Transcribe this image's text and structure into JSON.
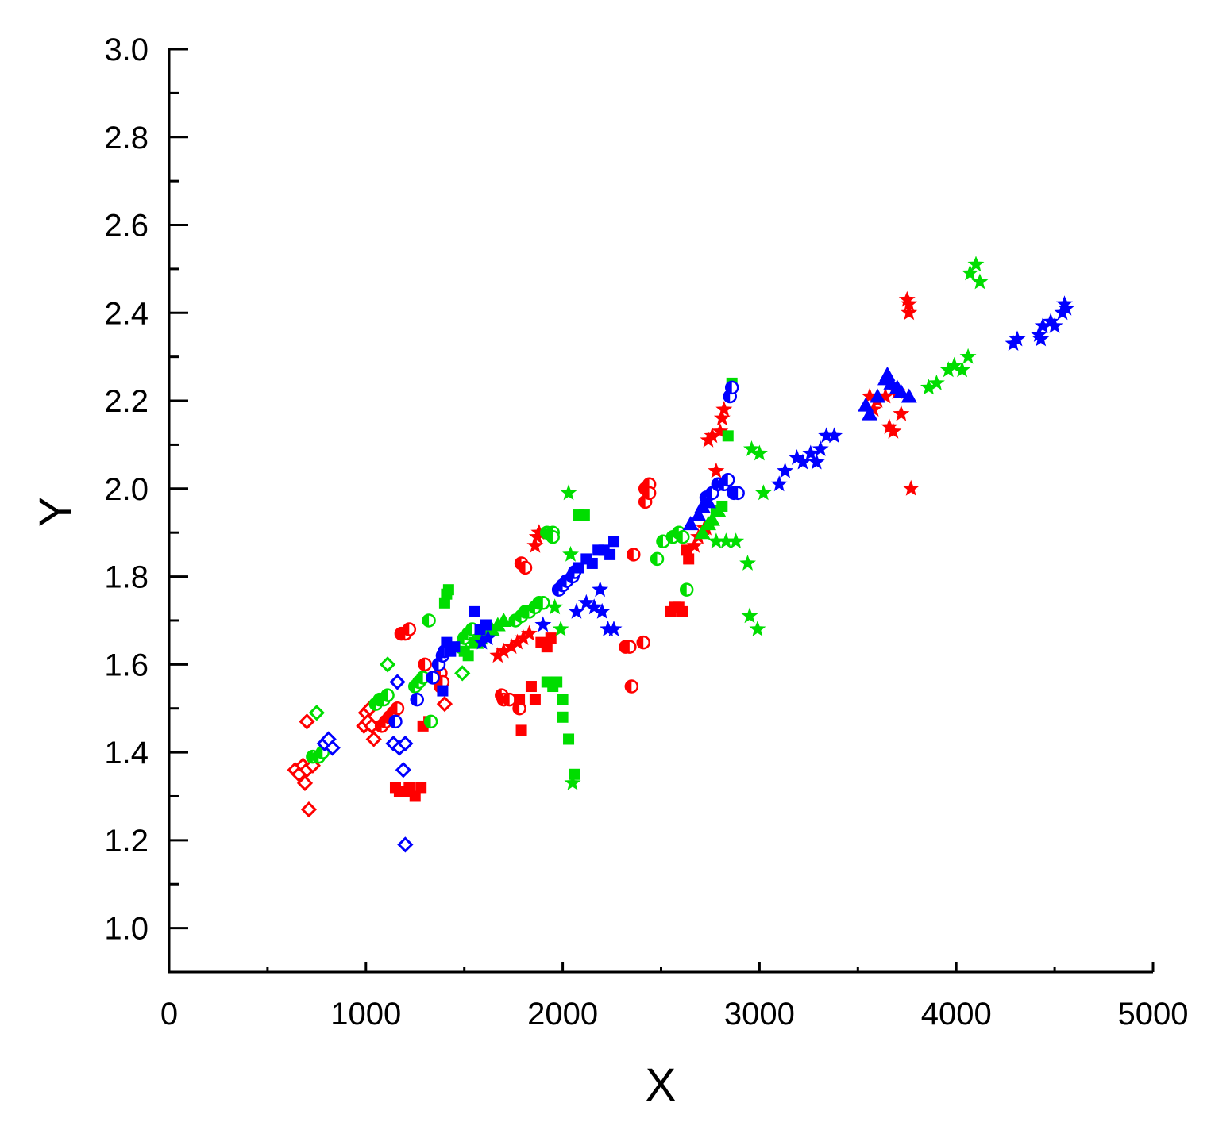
{
  "chart_data": {
    "type": "scatter",
    "title": "",
    "xlabel": "X",
    "ylabel": "Y",
    "xlim": [
      0,
      5000
    ],
    "ylim": [
      0.9,
      3.0
    ],
    "xticks": [
      0,
      1000,
      2000,
      3000,
      4000,
      5000
    ],
    "yticks": [
      1.0,
      1.2,
      1.4,
      1.6,
      1.8,
      2.0,
      2.2,
      2.4,
      2.6,
      2.8,
      3.0
    ],
    "x_tick_labels": [
      "0",
      "1000",
      "2000",
      "3000",
      "4000",
      "5000"
    ],
    "y_tick_labels": [
      "1.0",
      "1.2",
      "1.4",
      "1.6",
      "1.8",
      "2.0",
      "2.2",
      "2.4",
      "2.6",
      "2.8",
      "3.0"
    ],
    "grid": false,
    "legend": "none",
    "colors": {
      "red": "#ff0000",
      "green": "#00dd00",
      "blue": "#0000ff",
      "axis": "#000000"
    },
    "series": [
      {
        "color": "red",
        "marker": "diamond",
        "fill": "open",
        "points": [
          [
            640,
            1.36
          ],
          [
            660,
            1.35
          ],
          [
            680,
            1.37
          ],
          [
            690,
            1.33
          ],
          [
            700,
            1.36
          ],
          [
            700,
            1.47
          ],
          [
            710,
            1.27
          ],
          [
            730,
            1.37
          ],
          [
            990,
            1.46
          ],
          [
            1000,
            1.49
          ],
          [
            1010,
            1.47
          ],
          [
            1020,
            1.5
          ],
          [
            1030,
            1.46
          ],
          [
            1040,
            1.43
          ],
          [
            1400,
            1.51
          ]
        ]
      },
      {
        "color": "red",
        "marker": "circle",
        "fill": "half",
        "points": [
          [
            1080,
            1.46
          ],
          [
            1100,
            1.47
          ],
          [
            1120,
            1.48
          ],
          [
            1140,
            1.49
          ],
          [
            1160,
            1.5
          ],
          [
            1180,
            1.67
          ],
          [
            1200,
            1.67
          ],
          [
            1220,
            1.68
          ],
          [
            1300,
            1.6
          ],
          [
            1380,
            1.58
          ],
          [
            1380,
            1.55
          ],
          [
            1390,
            1.56
          ],
          [
            1690,
            1.53
          ],
          [
            1700,
            1.52
          ],
          [
            1730,
            1.52
          ],
          [
            1780,
            1.5
          ],
          [
            1790,
            1.83
          ],
          [
            1810,
            1.82
          ],
          [
            2320,
            1.64
          ],
          [
            2340,
            1.64
          ],
          [
            2350,
            1.55
          ],
          [
            2360,
            1.85
          ],
          [
            2410,
            1.65
          ],
          [
            2420,
            2.0
          ],
          [
            2420,
            1.97
          ],
          [
            2440,
            2.01
          ],
          [
            2440,
            1.99
          ]
        ]
      },
      {
        "color": "red",
        "marker": "square",
        "fill": "filled",
        "points": [
          [
            1150,
            1.32
          ],
          [
            1170,
            1.31
          ],
          [
            1200,
            1.31
          ],
          [
            1220,
            1.32
          ],
          [
            1250,
            1.3
          ],
          [
            1280,
            1.32
          ],
          [
            1290,
            1.46
          ],
          [
            1320,
            1.47
          ],
          [
            1780,
            1.52
          ],
          [
            1790,
            1.45
          ],
          [
            1840,
            1.55
          ],
          [
            1860,
            1.52
          ],
          [
            1890,
            1.65
          ],
          [
            1920,
            1.64
          ],
          [
            1940,
            1.66
          ],
          [
            2550,
            1.72
          ],
          [
            2570,
            1.73
          ],
          [
            2590,
            1.73
          ],
          [
            2610,
            1.72
          ],
          [
            2630,
            1.86
          ],
          [
            2640,
            1.84
          ]
        ]
      },
      {
        "color": "red",
        "marker": "star",
        "fill": "filled",
        "points": [
          [
            1670,
            1.62
          ],
          [
            1700,
            1.63
          ],
          [
            1740,
            1.64
          ],
          [
            1770,
            1.65
          ],
          [
            1800,
            1.66
          ],
          [
            1830,
            1.67
          ],
          [
            1860,
            1.87
          ],
          [
            1870,
            1.89
          ],
          [
            1880,
            1.9
          ],
          [
            2670,
            1.87
          ],
          [
            2690,
            1.89
          ],
          [
            2720,
            1.91
          ],
          [
            2730,
            1.91
          ],
          [
            2740,
            2.11
          ],
          [
            2760,
            2.12
          ],
          [
            2780,
            2.04
          ],
          [
            2800,
            2.13
          ],
          [
            2810,
            2.16
          ],
          [
            2820,
            2.18
          ],
          [
            3560,
            2.21
          ],
          [
            3580,
            2.18
          ],
          [
            3600,
            2.2
          ],
          [
            3640,
            2.21
          ],
          [
            3660,
            2.14
          ],
          [
            3680,
            2.13
          ],
          [
            3700,
            2.22
          ],
          [
            3720,
            2.17
          ],
          [
            3750,
            2.43
          ],
          [
            3760,
            2.42
          ],
          [
            3760,
            2.4
          ],
          [
            3770,
            2.0
          ]
        ]
      },
      {
        "color": "green",
        "marker": "diamond",
        "fill": "open",
        "points": [
          [
            750,
            1.49
          ],
          [
            1110,
            1.6
          ],
          [
            1490,
            1.58
          ]
        ]
      },
      {
        "color": "green",
        "marker": "circle",
        "fill": "half",
        "points": [
          [
            730,
            1.39
          ],
          [
            760,
            1.39
          ],
          [
            780,
            1.4
          ],
          [
            1050,
            1.51
          ],
          [
            1070,
            1.52
          ],
          [
            1090,
            1.52
          ],
          [
            1110,
            1.53
          ],
          [
            1250,
            1.55
          ],
          [
            1270,
            1.56
          ],
          [
            1290,
            1.57
          ],
          [
            1320,
            1.7
          ],
          [
            1330,
            1.47
          ],
          [
            1480,
            1.64
          ],
          [
            1500,
            1.66
          ],
          [
            1520,
            1.67
          ],
          [
            1540,
            1.68
          ],
          [
            1760,
            1.7
          ],
          [
            1790,
            1.71
          ],
          [
            1810,
            1.72
          ],
          [
            1830,
            1.72
          ],
          [
            1860,
            1.73
          ],
          [
            1880,
            1.74
          ],
          [
            1900,
            1.74
          ],
          [
            1920,
            1.9
          ],
          [
            1950,
            1.9
          ],
          [
            1950,
            1.89
          ],
          [
            2480,
            1.84
          ],
          [
            2510,
            1.88
          ],
          [
            2560,
            1.89
          ],
          [
            2590,
            1.9
          ],
          [
            2610,
            1.89
          ],
          [
            2630,
            1.77
          ]
        ]
      },
      {
        "color": "green",
        "marker": "square",
        "fill": "filled",
        "points": [
          [
            1400,
            1.74
          ],
          [
            1410,
            1.76
          ],
          [
            1420,
            1.77
          ],
          [
            1500,
            1.63
          ],
          [
            1520,
            1.62
          ],
          [
            1550,
            1.65
          ],
          [
            1580,
            1.66
          ],
          [
            1920,
            1.56
          ],
          [
            1950,
            1.55
          ],
          [
            1970,
            1.56
          ],
          [
            2000,
            1.52
          ],
          [
            2000,
            1.48
          ],
          [
            2030,
            1.43
          ],
          [
            2060,
            1.35
          ],
          [
            2080,
            1.94
          ],
          [
            2110,
            1.94
          ],
          [
            2780,
            1.95
          ],
          [
            2810,
            1.96
          ],
          [
            2840,
            2.12
          ],
          [
            2860,
            2.24
          ]
        ]
      },
      {
        "color": "green",
        "marker": "triangle",
        "fill": "filled",
        "points": [
          [
            1560,
            1.65
          ],
          [
            1580,
            1.66
          ],
          [
            1600,
            1.67
          ],
          [
            1640,
            1.68
          ],
          [
            1670,
            1.69
          ],
          [
            1700,
            1.7
          ],
          [
            2710,
            1.9
          ],
          [
            2740,
            1.92
          ],
          [
            2760,
            1.93
          ],
          [
            2790,
            1.95
          ]
        ]
      },
      {
        "color": "green",
        "marker": "star",
        "fill": "filled",
        "points": [
          [
            1960,
            1.73
          ],
          [
            1990,
            1.68
          ],
          [
            2030,
            1.99
          ],
          [
            2040,
            1.85
          ],
          [
            2050,
            1.33
          ],
          [
            2780,
            1.88
          ],
          [
            2830,
            1.88
          ],
          [
            2880,
            1.88
          ],
          [
            2940,
            1.83
          ],
          [
            2960,
            2.09
          ],
          [
            3000,
            2.08
          ],
          [
            3020,
            1.99
          ],
          [
            2950,
            1.71
          ],
          [
            2990,
            1.68
          ],
          [
            3860,
            2.23
          ],
          [
            3900,
            2.24
          ],
          [
            3960,
            2.27
          ],
          [
            3990,
            2.28
          ],
          [
            4030,
            2.27
          ],
          [
            4060,
            2.3
          ],
          [
            4070,
            2.49
          ],
          [
            4100,
            2.51
          ],
          [
            4120,
            2.47
          ]
        ]
      },
      {
        "color": "blue",
        "marker": "diamond",
        "fill": "open",
        "points": [
          [
            790,
            1.42
          ],
          [
            810,
            1.43
          ],
          [
            830,
            1.41
          ],
          [
            1140,
            1.42
          ],
          [
            1160,
            1.56
          ],
          [
            1170,
            1.41
          ],
          [
            1190,
            1.36
          ],
          [
            1200,
            1.42
          ],
          [
            1200,
            1.19
          ]
        ]
      },
      {
        "color": "blue",
        "marker": "circle",
        "fill": "half",
        "points": [
          [
            1150,
            1.47
          ],
          [
            1260,
            1.52
          ],
          [
            1340,
            1.57
          ],
          [
            1370,
            1.6
          ],
          [
            1390,
            1.62
          ],
          [
            1400,
            1.63
          ],
          [
            1980,
            1.77
          ],
          [
            2000,
            1.78
          ],
          [
            2020,
            1.79
          ],
          [
            2050,
            1.8
          ],
          [
            2060,
            1.81
          ],
          [
            2730,
            1.98
          ],
          [
            2760,
            1.99
          ],
          [
            2790,
            2.01
          ],
          [
            2820,
            2.01
          ],
          [
            2840,
            2.02
          ],
          [
            2850,
            2.21
          ],
          [
            2860,
            2.23
          ],
          [
            2870,
            1.99
          ],
          [
            2890,
            1.99
          ]
        ]
      },
      {
        "color": "blue",
        "marker": "square",
        "fill": "filled",
        "points": [
          [
            1390,
            1.54
          ],
          [
            1410,
            1.65
          ],
          [
            1430,
            1.63
          ],
          [
            1450,
            1.64
          ],
          [
            1550,
            1.72
          ],
          [
            1580,
            1.68
          ],
          [
            1610,
            1.69
          ],
          [
            2080,
            1.82
          ],
          [
            2120,
            1.84
          ],
          [
            2150,
            1.83
          ],
          [
            2180,
            1.86
          ],
          [
            2210,
            1.86
          ],
          [
            2240,
            1.85
          ],
          [
            2260,
            1.88
          ]
        ]
      },
      {
        "color": "blue",
        "marker": "triangle",
        "fill": "filled",
        "points": [
          [
            2650,
            1.92
          ],
          [
            2690,
            1.94
          ],
          [
            2710,
            1.96
          ],
          [
            2740,
            1.97
          ],
          [
            3540,
            2.19
          ],
          [
            3560,
            2.17
          ],
          [
            3600,
            2.21
          ],
          [
            3640,
            2.25
          ],
          [
            3650,
            2.26
          ],
          [
            3670,
            2.24
          ],
          [
            3700,
            2.23
          ],
          [
            3720,
            2.22
          ],
          [
            3760,
            2.21
          ]
        ]
      },
      {
        "color": "blue",
        "marker": "star",
        "fill": "filled",
        "points": [
          [
            1590,
            1.65
          ],
          [
            1620,
            1.66
          ],
          [
            1900,
            1.69
          ],
          [
            2070,
            1.72
          ],
          [
            2120,
            1.74
          ],
          [
            2160,
            1.73
          ],
          [
            2190,
            1.77
          ],
          [
            2200,
            1.72
          ],
          [
            2230,
            1.68
          ],
          [
            2260,
            1.68
          ],
          [
            3100,
            2.01
          ],
          [
            3130,
            2.04
          ],
          [
            3190,
            2.07
          ],
          [
            3220,
            2.06
          ],
          [
            3260,
            2.08
          ],
          [
            3290,
            2.06
          ],
          [
            3310,
            2.09
          ],
          [
            3340,
            2.12
          ],
          [
            3380,
            2.12
          ],
          [
            4290,
            2.33
          ],
          [
            4310,
            2.34
          ],
          [
            4420,
            2.35
          ],
          [
            4430,
            2.34
          ],
          [
            4440,
            2.37
          ],
          [
            4480,
            2.38
          ],
          [
            4500,
            2.37
          ],
          [
            4540,
            2.4
          ],
          [
            4550,
            2.42
          ],
          [
            4560,
            2.41
          ]
        ]
      }
    ]
  }
}
